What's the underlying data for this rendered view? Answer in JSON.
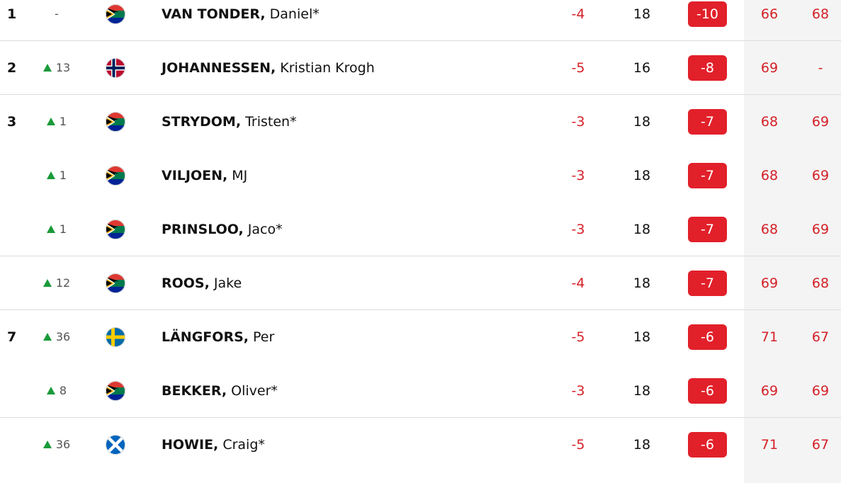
{
  "leaderboard": {
    "rows": [
      {
        "pos": "1",
        "move": "-",
        "last": "VAN TONDER,",
        "first": "Daniel*",
        "today": "-4",
        "thru": "18",
        "total": "-10",
        "r1": "66",
        "r2": "68"
      },
      {
        "pos": "2",
        "move": "13",
        "trend": "up",
        "last": "JOHANNESSEN,",
        "first": "Kristian Krogh",
        "today": "-5",
        "thru": "16",
        "total": "-8",
        "r1": "69",
        "r2": "-"
      },
      {
        "pos": "3",
        "move": "1",
        "trend": "up",
        "last": "STRYDOM,",
        "first": "Tristen*",
        "today": "-3",
        "thru": "18",
        "total": "-7",
        "r1": "68",
        "r2": "69"
      },
      {
        "move": "1",
        "trend": "up",
        "last": "VILJOEN,",
        "first": "MJ",
        "today": "-3",
        "thru": "18",
        "total": "-7",
        "r1": "68",
        "r2": "69"
      },
      {
        "move": "1",
        "trend": "up",
        "last": "PRINSLOO,",
        "first": "Jaco*",
        "today": "-3",
        "thru": "18",
        "total": "-7",
        "r1": "68",
        "r2": "69"
      },
      {
        "move": "12",
        "trend": "up",
        "last": "ROOS,",
        "first": "Jake",
        "today": "-4",
        "thru": "18",
        "total": "-7",
        "r1": "69",
        "r2": "68"
      },
      {
        "pos": "7",
        "move": "36",
        "trend": "up",
        "last": "LÄNGFORS,",
        "first": "Per",
        "today": "-5",
        "thru": "18",
        "total": "-6",
        "r1": "71",
        "r2": "67"
      },
      {
        "move": "8",
        "trend": "up",
        "last": "BEKKER,",
        "first": "Oliver*",
        "today": "-3",
        "thru": "18",
        "total": "-6",
        "r1": "69",
        "r2": "69"
      },
      {
        "move": "36",
        "trend": "up",
        "last": "HOWIE,",
        "first": "Craig*",
        "today": "-5",
        "thru": "18",
        "total": "-6",
        "r1": "71",
        "r2": "67"
      }
    ]
  }
}
